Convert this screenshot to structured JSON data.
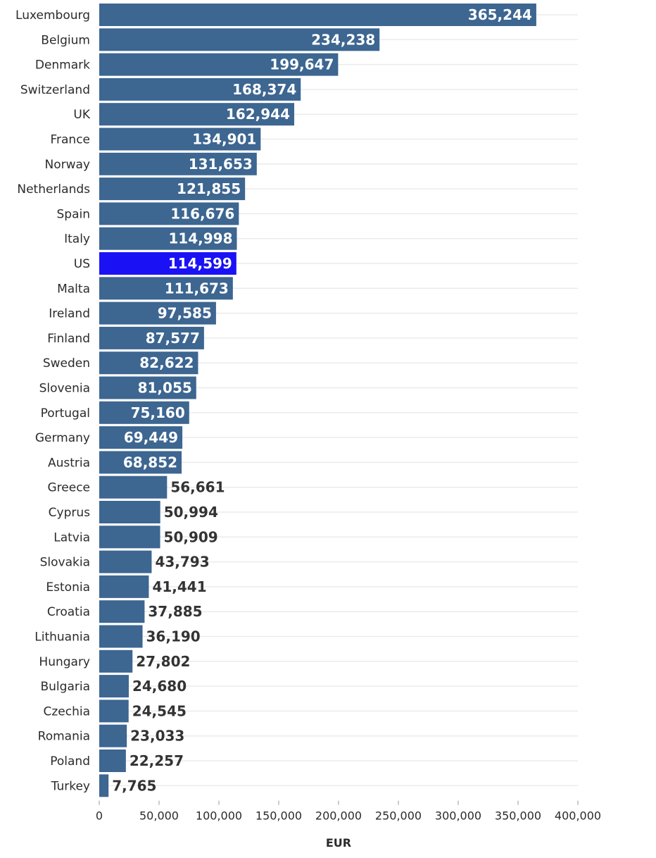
{
  "chart_data": {
    "type": "bar",
    "orientation": "horizontal",
    "title": "",
    "xlabel": "EUR",
    "ylabel": "",
    "xlim": [
      0,
      400000
    ],
    "x_ticks": [
      0,
      50000,
      100000,
      150000,
      200000,
      250000,
      300000,
      350000,
      400000
    ],
    "x_tick_labels": [
      "0",
      "50,000",
      "100,000",
      "150,000",
      "200,000",
      "250,000",
      "300,000",
      "350,000",
      "400,000"
    ],
    "grid": true,
    "bar_color": "#3d6691",
    "highlight_color": "#1a12f5",
    "highlight_category": "US",
    "categories": [
      "Luxembourg",
      "Belgium",
      "Denmark",
      "Switzerland",
      "UK",
      "France",
      "Norway",
      "Netherlands",
      "Spain",
      "Italy",
      "US",
      "Malta",
      "Ireland",
      "Finland",
      "Sweden",
      "Slovenia",
      "Portugal",
      "Germany",
      "Austria",
      "Greece",
      "Cyprus",
      "Latvia",
      "Slovakia",
      "Estonia",
      "Croatia",
      "Lithuania",
      "Hungary",
      "Bulgaria",
      "Czechia",
      "Romania",
      "Poland",
      "Turkey"
    ],
    "values": [
      365244,
      234238,
      199647,
      168374,
      162944,
      134901,
      131653,
      121855,
      116676,
      114998,
      114599,
      111673,
      97585,
      87577,
      82622,
      81055,
      75160,
      69449,
      68852,
      56661,
      50994,
      50909,
      43793,
      41441,
      37885,
      36190,
      27802,
      24680,
      24545,
      23033,
      22257,
      7765
    ],
    "value_labels": [
      "365,244",
      "234,238",
      "199,647",
      "168,374",
      "162,944",
      "134,901",
      "131,653",
      "121,855",
      "116,676",
      "114,998",
      "114,599",
      "111,673",
      "97,585",
      "87,577",
      "82,622",
      "81,055",
      "75,160",
      "69,449",
      "68,852",
      "56,661",
      "50,994",
      "50,909",
      "43,793",
      "41,441",
      "37,885",
      "36,190",
      "27,802",
      "24,680",
      "24,545",
      "23,033",
      "22,257",
      "7,765"
    ]
  }
}
